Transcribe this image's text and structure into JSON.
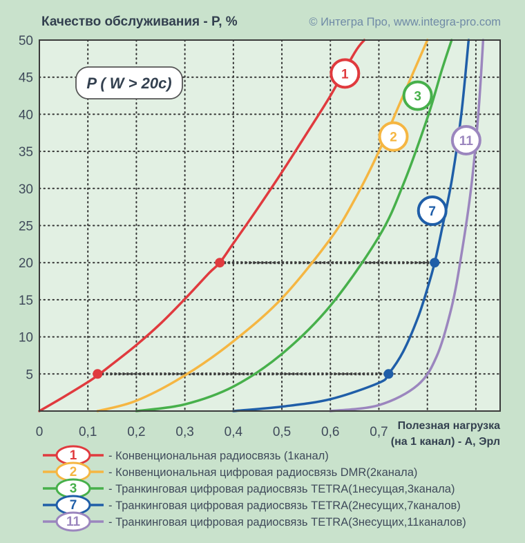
{
  "chart_data": {
    "type": "line",
    "title": "Качество обслуживания - P, %",
    "credit": "© Интегра Про, www.integra-pro.com",
    "xlabel_line1": "Полезная нагрузка",
    "xlabel_line2": "(на 1 канал) - A, Эрл",
    "annotation": "P ( W > 20c)",
    "xlim": [
      0,
      0.95
    ],
    "ylim": [
      0,
      50
    ],
    "x_ticks": [
      0,
      0.1,
      0.2,
      0.3,
      0.4,
      0.5,
      0.6,
      0.7
    ],
    "x_tick_labels": [
      "0",
      "0,1",
      "0,2",
      "0,3",
      "0,4",
      "0,5",
      "0,6",
      "0,7"
    ],
    "y_ticks": [
      5,
      10,
      15,
      20,
      25,
      30,
      35,
      40,
      45,
      50
    ],
    "y_tick_labels": [
      "5",
      "10",
      "15",
      "20",
      "25",
      "30",
      "35",
      "40",
      "45",
      "50"
    ],
    "grid": true,
    "grid_style": "dotted",
    "legend_position": "bottom",
    "series": [
      {
        "id": "1",
        "color": "#e03a3e",
        "legend_label": "- Конвенциональная радиосвязь (1канал)",
        "badge_at": [
          0.63,
          45.5
        ],
        "points": [
          [
            0,
            0
          ],
          [
            0.05,
            1.9
          ],
          [
            0.1,
            3.9
          ],
          [
            0.12,
            4.8
          ],
          [
            0.15,
            6.3
          ],
          [
            0.2,
            8.9
          ],
          [
            0.25,
            11.8
          ],
          [
            0.3,
            15.1
          ],
          [
            0.35,
            18.6
          ],
          [
            0.372,
            20
          ],
          [
            0.4,
            22.6
          ],
          [
            0.45,
            27.3
          ],
          [
            0.5,
            32.2
          ],
          [
            0.55,
            37.3
          ],
          [
            0.6,
            42.5
          ],
          [
            0.65,
            48.3
          ],
          [
            0.67,
            50
          ]
        ]
      },
      {
        "id": "2",
        "color": "#f5b642",
        "legend_label": "- Конвенциональная цифровая радиосвязь DMR(2канала)",
        "badge_at": [
          0.73,
          37
        ],
        "points": [
          [
            0.12,
            0
          ],
          [
            0.2,
            1.4
          ],
          [
            0.3,
            4.8
          ],
          [
            0.4,
            9.4
          ],
          [
            0.5,
            15.2
          ],
          [
            0.6,
            23.2
          ],
          [
            0.65,
            28.5
          ],
          [
            0.7,
            35
          ],
          [
            0.75,
            42.5
          ],
          [
            0.8,
            50
          ]
        ]
      },
      {
        "id": "3",
        "color": "#47b04b",
        "legend_label": "- Транкинговая цифровая радиосвязь TETRA(1несущая,3канала)",
        "badge_at": [
          0.78,
          42.5
        ],
        "points": [
          [
            0.2,
            0
          ],
          [
            0.3,
            0.9
          ],
          [
            0.4,
            3.3
          ],
          [
            0.5,
            7.7
          ],
          [
            0.6,
            14.2
          ],
          [
            0.7,
            23.5
          ],
          [
            0.75,
            30.5
          ],
          [
            0.8,
            39.5
          ],
          [
            0.83,
            46
          ],
          [
            0.85,
            50
          ]
        ]
      },
      {
        "id": "7",
        "color": "#1f5ea8",
        "legend_label": "- Транкинговая цифровая радиосвязь TETRA(2несущих,7каналов)",
        "badge_at": [
          0.81,
          27
        ],
        "points": [
          [
            0.4,
            0
          ],
          [
            0.5,
            0.6
          ],
          [
            0.6,
            1.6
          ],
          [
            0.7,
            3.8
          ],
          [
            0.72,
            5
          ],
          [
            0.75,
            8
          ],
          [
            0.78,
            12.5
          ],
          [
            0.8,
            16.5
          ],
          [
            0.815,
            20
          ],
          [
            0.83,
            24.5
          ],
          [
            0.85,
            31
          ],
          [
            0.87,
            40
          ],
          [
            0.885,
            50
          ]
        ]
      },
      {
        "id": "11",
        "color": "#9b86be",
        "legend_label": "- Транкинговая цифровая радиосвязь TETRA(3несущих,11каналов)",
        "badge_at": [
          0.88,
          36.5
        ],
        "points": [
          [
            0.6,
            0
          ],
          [
            0.7,
            0.8
          ],
          [
            0.78,
            3.5
          ],
          [
            0.82,
            7.5
          ],
          [
            0.85,
            14
          ],
          [
            0.87,
            21
          ],
          [
            0.89,
            30
          ],
          [
            0.905,
            40
          ],
          [
            0.915,
            50
          ]
        ]
      }
    ],
    "markers": [
      {
        "series": "1",
        "x": 0.12,
        "y": 5
      },
      {
        "series": "1",
        "x": 0.372,
        "y": 20
      },
      {
        "series": "7",
        "x": 0.72,
        "y": 5
      },
      {
        "series": "7",
        "x": 0.815,
        "y": 20
      }
    ],
    "reference_lines": [
      {
        "y": 5,
        "x_from": 0.12,
        "x_to": 0.72
      },
      {
        "y": 20,
        "x_from": 0.372,
        "x_to": 0.815
      }
    ]
  }
}
